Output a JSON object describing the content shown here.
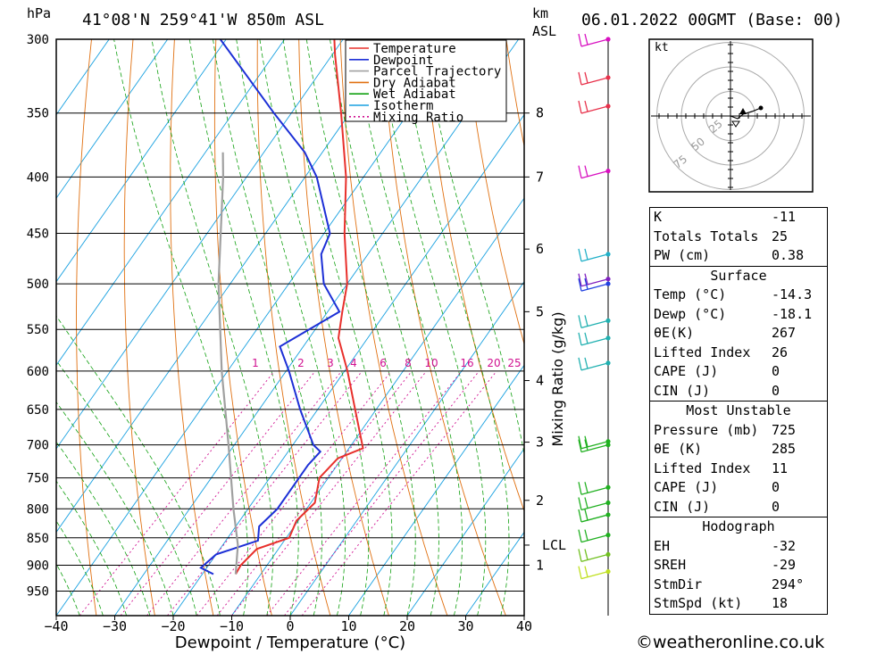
{
  "header": {
    "pressure_unit": "hPa",
    "location": "41°08'N  259°41'W  850m  ASL",
    "height_unit": "km",
    "height_unit_sub": "ASL",
    "date": "06.01.2022  00GMT  (Base: 00)"
  },
  "colors": {
    "temperature": "#e8302c",
    "dewpoint": "#1c2fd6",
    "parcel": "#a0a0a0",
    "dry_adiabat": "#e07010",
    "wet_adiabat": "#10a010",
    "isotherm": "#18a0e0",
    "mixing_ratio": "#d01090"
  },
  "chart_data": {
    "type": "skew-t",
    "xlabel": "Dewpoint / Temperature (°C)",
    "ylabel": "hPa",
    "xlim": [
      -40,
      40
    ],
    "ylim": [
      1000,
      300
    ],
    "x_ticks": [
      "−40",
      "−30",
      "−20",
      "−10",
      "0",
      "10",
      "20",
      "30",
      "40"
    ],
    "pressure_ticks": [
      300,
      350,
      400,
      450,
      500,
      550,
      600,
      650,
      700,
      750,
      800,
      850,
      900,
      950
    ],
    "height_ticks_km": [
      {
        "label": "8",
        "p": 350
      },
      {
        "label": "7",
        "p": 400
      },
      {
        "label": "6",
        "p": 465
      },
      {
        "label": "5",
        "p": 530
      },
      {
        "label": "4",
        "p": 612
      },
      {
        "label": "3",
        "p": 696
      },
      {
        "label": "2",
        "p": 786
      },
      {
        "label": "LCL",
        "p": 863
      },
      {
        "label": "1",
        "p": 900
      }
    ],
    "mixing_ratio_axis_label": "Mixing Ratio (g/kg)",
    "mixing_ratios": [
      "1",
      "2",
      "3",
      "4",
      "6",
      "8",
      "10",
      "16",
      "20",
      "25"
    ],
    "legend": [
      "Temperature",
      "Dewpoint",
      "Parcel Trajectory",
      "Dry Adiabat",
      "Wet Adiabat",
      "Isotherm",
      "Mixing Ratio"
    ],
    "series": [
      {
        "name": "Temperature",
        "points": [
          {
            "p": 917,
            "t": -14.3
          },
          {
            "p": 900,
            "t": -14.5
          },
          {
            "p": 870,
            "t": -13.7
          },
          {
            "p": 850,
            "t": -9.5
          },
          {
            "p": 820,
            "t": -10.3
          },
          {
            "p": 790,
            "t": -9.3
          },
          {
            "p": 750,
            "t": -11.5
          },
          {
            "p": 720,
            "t": -10.7
          },
          {
            "p": 705,
            "t": -7.6
          },
          {
            "p": 650,
            "t": -13.6
          },
          {
            "p": 600,
            "t": -19.5
          },
          {
            "p": 560,
            "t": -25
          },
          {
            "p": 530,
            "t": -27.5
          },
          {
            "p": 500,
            "t": -30
          },
          {
            "p": 450,
            "t": -36.5
          },
          {
            "p": 400,
            "t": -43
          },
          {
            "p": 350,
            "t": -51.5
          },
          {
            "p": 310,
            "t": -59.5
          },
          {
            "p": 300,
            "t": -61.5
          }
        ]
      },
      {
        "name": "Dewpoint",
        "points": [
          {
            "p": 917,
            "t": -18.1
          },
          {
            "p": 905,
            "t": -21
          },
          {
            "p": 880,
            "t": -20
          },
          {
            "p": 855,
            "t": -14.5
          },
          {
            "p": 830,
            "t": -16
          },
          {
            "p": 800,
            "t": -15
          },
          {
            "p": 730,
            "t": -15
          },
          {
            "p": 710,
            "t": -14.5
          },
          {
            "p": 700,
            "t": -16.5
          },
          {
            "p": 650,
            "t": -23
          },
          {
            "p": 600,
            "t": -29.5
          },
          {
            "p": 570,
            "t": -34
          },
          {
            "p": 530,
            "t": -28
          },
          {
            "p": 500,
            "t": -34
          },
          {
            "p": 470,
            "t": -38
          },
          {
            "p": 450,
            "t": -39
          },
          {
            "p": 400,
            "t": -48
          },
          {
            "p": 380,
            "t": -53
          },
          {
            "p": 350,
            "t": -63
          },
          {
            "p": 300,
            "t": -81
          }
        ]
      },
      {
        "name": "Parcel Trajectory",
        "points": [
          {
            "p": 917,
            "t": -14.3
          },
          {
            "p": 863,
            "t": -17.4
          },
          {
            "p": 800,
            "t": -22.5
          },
          {
            "p": 700,
            "t": -31
          },
          {
            "p": 600,
            "t": -41
          },
          {
            "p": 500,
            "t": -52
          },
          {
            "p": 400,
            "t": -64
          },
          {
            "p": 380,
            "t": -67
          }
        ]
      }
    ],
    "wind_barbs": [
      {
        "p": 300,
        "color": "#d80fc0"
      },
      {
        "p": 325,
        "color": "#e8304a"
      },
      {
        "p": 345,
        "color": "#e8304a"
      },
      {
        "p": 395,
        "color": "#d80fc0"
      },
      {
        "p": 470,
        "color": "#20b0c8"
      },
      {
        "p": 495,
        "color": "#8020c0"
      },
      {
        "p": 500,
        "color": "#2040e0"
      },
      {
        "p": 540,
        "color": "#20b0b0"
      },
      {
        "p": 560,
        "color": "#20b0b0"
      },
      {
        "p": 590,
        "color": "#20b0b0"
      },
      {
        "p": 695,
        "color": "#20b020"
      },
      {
        "p": 700,
        "color": "#20b020"
      },
      {
        "p": 765,
        "color": "#20b020"
      },
      {
        "p": 790,
        "color": "#20b020"
      },
      {
        "p": 810,
        "color": "#20b020"
      },
      {
        "p": 845,
        "color": "#20b020"
      },
      {
        "p": 880,
        "color": "#70c020"
      },
      {
        "p": 912,
        "color": "#c0e020"
      }
    ],
    "hodograph": {
      "unit": "kt",
      "rings": [
        "25",
        "50",
        "75"
      ],
      "points": [
        [
          0,
          0
        ],
        [
          8,
          -3
        ],
        [
          14,
          2
        ],
        [
          24,
          5
        ],
        [
          34,
          9
        ]
      ]
    }
  },
  "indices": {
    "top": [
      {
        "label": "K",
        "value": "-11"
      },
      {
        "label": "Totals Totals",
        "value": "25"
      },
      {
        "label": "PW (cm)",
        "value": "0.38"
      }
    ],
    "surface_title": "Surface",
    "surface": [
      {
        "label": "Temp (°C)",
        "value": "-14.3"
      },
      {
        "label": "Dewp (°C)",
        "value": "-18.1"
      },
      {
        "label": "θE(K)",
        "value": "267"
      },
      {
        "label": "Lifted Index",
        "value": "26"
      },
      {
        "label": "CAPE (J)",
        "value": "0"
      },
      {
        "label": "CIN (J)",
        "value": "0"
      }
    ],
    "mu_title": "Most Unstable",
    "mu": [
      {
        "label": "Pressure (mb)",
        "value": "725"
      },
      {
        "label": "θE (K)",
        "value": "285"
      },
      {
        "label": "Lifted Index",
        "value": "11"
      },
      {
        "label": "CAPE (J)",
        "value": "0"
      },
      {
        "label": "CIN (J)",
        "value": "0"
      }
    ],
    "hodo_title": "Hodograph",
    "hodo": [
      {
        "label": "EH",
        "value": "-32"
      },
      {
        "label": "SREH",
        "value": "-29"
      },
      {
        "label": "StmDir",
        "value": "294°"
      },
      {
        "label": "StmSpd (kt)",
        "value": "18"
      }
    ]
  },
  "copyright": "©weatheronline.co.uk"
}
